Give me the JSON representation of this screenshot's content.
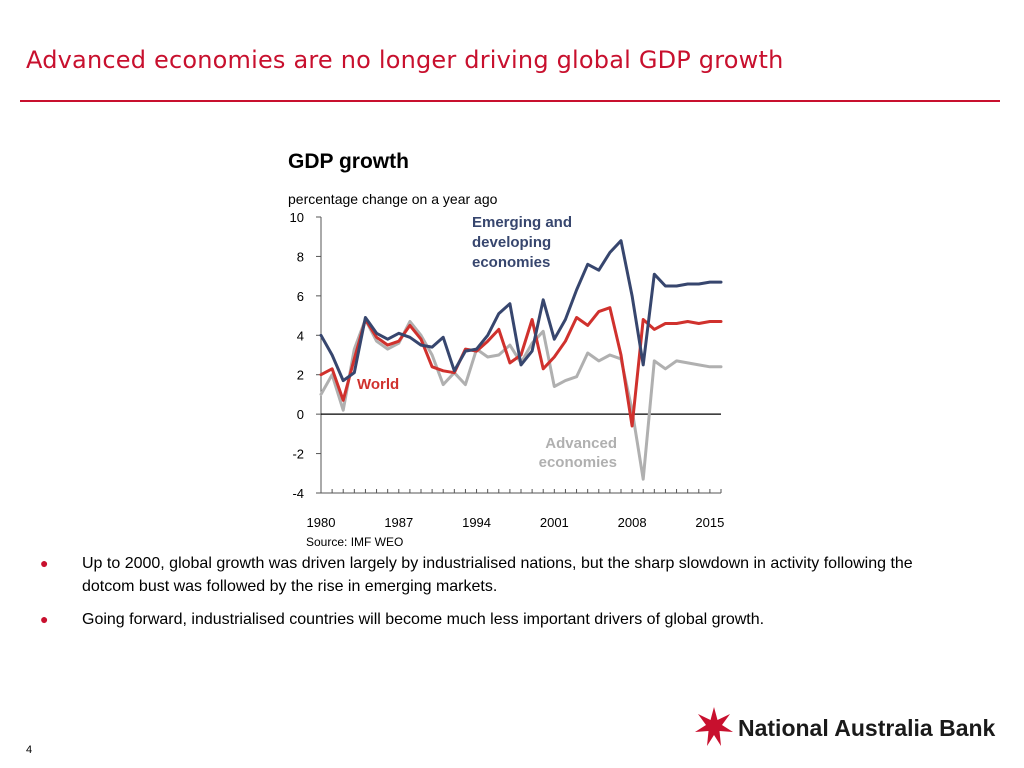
{
  "slide": {
    "title": "Advanced economies are no longer driving global GDP growth",
    "source": "Source: IMF WEO",
    "page_number": "4",
    "bullets": [
      "Up to 2000, global growth was driven largely by industrialised nations, but the sharp slowdown in activity following the dotcom bust was followed by the rise in emerging markets.",
      "Going forward, industrialised countries will become much less important drivers of global growth."
    ],
    "bullet_glyph": "●",
    "logo_text": "National Australia Bank",
    "accent_color": "#c8102e"
  },
  "chart_data": {
    "type": "line",
    "title": "GDP growth",
    "subtitle": "percentage change on a year ago",
    "xlim": [
      1980,
      2016
    ],
    "ylim": [
      -4,
      10
    ],
    "x_ticks": [
      1980,
      1987,
      1994,
      2001,
      2008,
      2015
    ],
    "y_ticks": [
      -4,
      -2,
      0,
      2,
      4,
      6,
      8,
      10
    ],
    "grid": false,
    "x": [
      1980,
      1981,
      1982,
      1983,
      1984,
      1985,
      1986,
      1987,
      1988,
      1989,
      1990,
      1991,
      1992,
      1993,
      1994,
      1995,
      1996,
      1997,
      1998,
      1999,
      2000,
      2001,
      2002,
      2003,
      2004,
      2005,
      2006,
      2007,
      2008,
      2009,
      2010,
      2011,
      2012,
      2013,
      2014,
      2015,
      2016
    ],
    "series": [
      {
        "name": "Emerging and developing economies",
        "label_lines": [
          "Emerging and",
          "developing",
          "economies"
        ],
        "color": "#37466e",
        "values": [
          4.0,
          3.0,
          1.7,
          2.1,
          4.9,
          4.1,
          3.8,
          4.1,
          3.9,
          3.5,
          3.4,
          3.9,
          2.2,
          3.2,
          3.3,
          4.0,
          5.1,
          5.6,
          2.5,
          3.2,
          5.8,
          3.8,
          4.8,
          6.3,
          7.6,
          7.3,
          8.2,
          8.8,
          6.0,
          2.5,
          7.1,
          6.5,
          6.5,
          6.6,
          6.6,
          6.7,
          6.7
        ]
      },
      {
        "name": "World",
        "label_lines": [
          "World"
        ],
        "color": "#d0312d",
        "values": [
          2.0,
          2.3,
          0.7,
          2.8,
          4.8,
          3.9,
          3.5,
          3.7,
          4.5,
          3.8,
          2.4,
          2.2,
          2.1,
          3.3,
          3.2,
          3.7,
          4.3,
          2.6,
          3.0,
          4.8,
          2.3,
          2.9,
          3.7,
          4.9,
          4.5,
          5.2,
          5.4,
          3.0,
          -0.6,
          4.8,
          4.3,
          4.6,
          4.6,
          4.7,
          4.6,
          4.7,
          4.7
        ]
      },
      {
        "name": "Advanced economies",
        "label_lines": [
          "Advanced",
          "economies"
        ],
        "color": "#b0b0b0",
        "values": [
          1.0,
          2.0,
          0.2,
          3.3,
          4.8,
          3.7,
          3.3,
          3.6,
          4.7,
          4.0,
          3.0,
          1.5,
          2.1,
          1.5,
          3.3,
          2.9,
          3.0,
          3.5,
          2.6,
          3.6,
          4.2,
          1.4,
          1.7,
          1.9,
          3.1,
          2.7,
          3.0,
          2.8,
          0.2,
          -3.3,
          2.7,
          2.3,
          2.7,
          2.6,
          2.5,
          2.4,
          2.4
        ]
      }
    ]
  }
}
